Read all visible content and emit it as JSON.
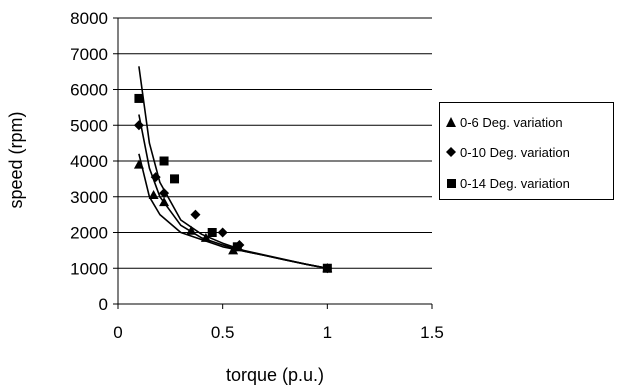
{
  "chart_data": {
    "type": "scatter",
    "xlabel": "torque (p.u.)",
    "ylabel": "speed (rpm)",
    "xlim": [
      0,
      1.5
    ],
    "ylim": [
      0,
      8000
    ],
    "xticks": [
      0,
      0.5,
      1,
      1.5
    ],
    "yticks": [
      0,
      1000,
      2000,
      3000,
      4000,
      5000,
      6000,
      7000,
      8000
    ],
    "grid": "horizontal",
    "legend_position": "right",
    "series": [
      {
        "name": "0-6 Deg. variation",
        "marker": "triangle",
        "points": [
          [
            0.1,
            3900
          ],
          [
            0.17,
            3050
          ],
          [
            0.22,
            2850
          ],
          [
            0.35,
            2050
          ],
          [
            0.42,
            1850
          ],
          [
            0.55,
            1500
          ],
          [
            1.0,
            1000
          ]
        ],
        "trend": [
          [
            0.1,
            4200
          ],
          [
            0.15,
            3000
          ],
          [
            0.2,
            2500
          ],
          [
            0.3,
            2000
          ],
          [
            0.4,
            1800
          ],
          [
            0.5,
            1600
          ],
          [
            0.6,
            1480
          ],
          [
            0.7,
            1360
          ],
          [
            0.8,
            1230
          ],
          [
            0.9,
            1110
          ],
          [
            1.0,
            1000
          ]
        ]
      },
      {
        "name": "0-10 Deg. variation",
        "marker": "diamond",
        "points": [
          [
            0.1,
            5000
          ],
          [
            0.18,
            3550
          ],
          [
            0.22,
            3100
          ],
          [
            0.37,
            2500
          ],
          [
            0.5,
            2000
          ],
          [
            0.58,
            1650
          ],
          [
            1.0,
            1000
          ]
        ],
        "trend": [
          [
            0.1,
            5300
          ],
          [
            0.15,
            3800
          ],
          [
            0.2,
            3000
          ],
          [
            0.3,
            2200
          ],
          [
            0.4,
            1850
          ],
          [
            0.5,
            1650
          ],
          [
            0.6,
            1480
          ],
          [
            0.7,
            1360
          ],
          [
            0.8,
            1230
          ],
          [
            0.9,
            1110
          ],
          [
            1.0,
            1000
          ]
        ]
      },
      {
        "name": "0-14 Deg. variation",
        "marker": "square",
        "points": [
          [
            0.1,
            5750
          ],
          [
            0.22,
            4000
          ],
          [
            0.27,
            3500
          ],
          [
            0.45,
            2000
          ],
          [
            0.57,
            1600
          ],
          [
            1.0,
            1000
          ]
        ],
        "trend": [
          [
            0.1,
            6650
          ],
          [
            0.15,
            4500
          ],
          [
            0.2,
            3400
          ],
          [
            0.3,
            2350
          ],
          [
            0.4,
            1950
          ],
          [
            0.5,
            1700
          ],
          [
            0.6,
            1500
          ],
          [
            0.7,
            1370
          ],
          [
            0.8,
            1240
          ],
          [
            0.9,
            1110
          ],
          [
            1.0,
            1000
          ]
        ]
      }
    ]
  }
}
